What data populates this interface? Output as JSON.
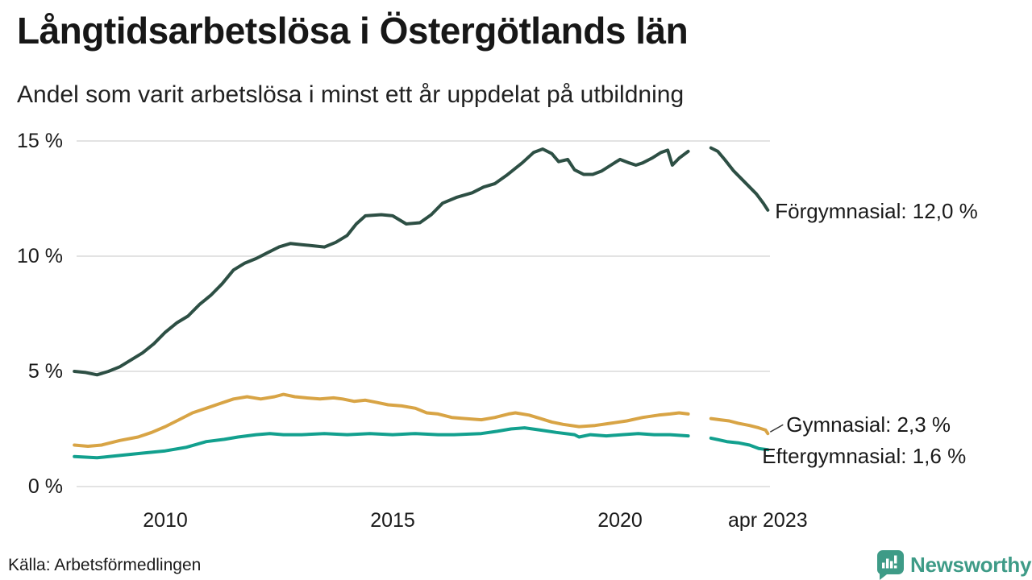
{
  "header": {
    "title": "Långtidsarbetslösa i Östergötlands län",
    "subtitle": "Andel som varit arbetslösa i minst ett år uppdelat på utbildning"
  },
  "footer": {
    "source": "Källa: Arbetsförmedlingen",
    "brand": "Newsworthy"
  },
  "colors": {
    "text": "#1a1a1a",
    "grid": "#e3e3e3",
    "connector": "#333333",
    "brand": "#3e9b87",
    "forgymnasial": "#2d4f44",
    "gymnasial": "#d8a445",
    "eftergymnasial": "#12a08e"
  },
  "chart_data": {
    "type": "line",
    "title": "Långtidsarbetslösa i Östergötlands län",
    "subtitle": "Andel som varit arbetslösa i minst ett år uppdelat på utbildning",
    "xlabel": "",
    "ylabel": "",
    "x_unit": "decimal_year",
    "xlim": [
      2008,
      2023.45
    ],
    "ylim": [
      0,
      15
    ],
    "grid": "horizontal-only",
    "legend": "line-end-labels",
    "note": "gap in all series during second half of 2021",
    "yticks": [
      {
        "value": 0,
        "label": "0 %"
      },
      {
        "value": 5,
        "label": "5 %"
      },
      {
        "value": 10,
        "label": "10 %"
      },
      {
        "value": 15,
        "label": "15 %"
      }
    ],
    "xticks": [
      {
        "value": 2010,
        "label": "2010"
      },
      {
        "value": 2015,
        "label": "2015"
      },
      {
        "value": 2020,
        "label": "2020"
      },
      {
        "value": 2023.25,
        "label": "apr 2023"
      }
    ],
    "series": [
      {
        "name": "Förgymnasial",
        "end_label": "Förgymnasial: 12,0 %",
        "last_value": "12,0 %",
        "color_key": "forgymnasial",
        "connector": false,
        "x": [
          2008.0,
          2008.25,
          2008.5,
          2008.75,
          2009.0,
          2009.25,
          2009.5,
          2009.75,
          2010.0,
          2010.25,
          2010.5,
          2010.75,
          2011.0,
          2011.25,
          2011.5,
          2011.75,
          2012.0,
          2012.25,
          2012.5,
          2012.75,
          2013.0,
          2013.25,
          2013.5,
          2013.75,
          2014.0,
          2014.2,
          2014.4,
          2014.75,
          2015.0,
          2015.3,
          2015.6,
          2015.85,
          2016.1,
          2016.4,
          2016.75,
          2017.0,
          2017.25,
          2017.5,
          2017.85,
          2018.1,
          2018.3,
          2018.5,
          2018.65,
          2018.85,
          2019.0,
          2019.2,
          2019.4,
          2019.6,
          2019.8,
          2020.0,
          2020.2,
          2020.35,
          2020.5,
          2020.7,
          2020.9,
          2021.05,
          2021.15,
          2021.3,
          2021.5,
          2021.75,
          2022.0,
          2022.15,
          2022.3,
          2022.5,
          2022.65,
          2022.8,
          2023.0,
          2023.15,
          2023.25
        ],
        "values": [
          5.0,
          4.95,
          4.85,
          5.0,
          5.2,
          5.5,
          5.8,
          6.2,
          6.7,
          7.1,
          7.4,
          7.9,
          8.3,
          8.8,
          9.4,
          9.7,
          9.9,
          10.15,
          10.4,
          10.55,
          10.5,
          10.45,
          10.4,
          10.6,
          10.9,
          11.4,
          11.75,
          11.8,
          11.75,
          11.4,
          11.45,
          11.8,
          12.3,
          12.55,
          12.75,
          13.0,
          13.15,
          13.5,
          14.05,
          14.5,
          14.65,
          14.45,
          14.1,
          14.2,
          13.75,
          13.55,
          13.55,
          13.7,
          13.95,
          14.2,
          14.05,
          13.95,
          14.05,
          14.25,
          14.5,
          14.6,
          13.95,
          14.25,
          14.55,
          null,
          14.7,
          14.55,
          14.2,
          13.7,
          13.4,
          13.1,
          12.7,
          12.3,
          12.0
        ]
      },
      {
        "name": "Gymnasial",
        "end_label": "Gymnasial:  2,3 %",
        "last_value": "2,3 %",
        "color_key": "gymnasial",
        "connector": true,
        "x": [
          2008.0,
          2008.3,
          2008.6,
          2009.0,
          2009.4,
          2009.7,
          2010.0,
          2010.3,
          2010.6,
          2010.9,
          2011.2,
          2011.5,
          2011.8,
          2012.1,
          2012.4,
          2012.6,
          2012.85,
          2013.1,
          2013.4,
          2013.7,
          2013.9,
          2014.15,
          2014.4,
          2014.65,
          2014.9,
          2015.2,
          2015.5,
          2015.75,
          2016.0,
          2016.3,
          2016.6,
          2016.95,
          2017.25,
          2017.55,
          2017.7,
          2018.0,
          2018.25,
          2018.5,
          2018.75,
          2019.1,
          2019.45,
          2019.8,
          2020.15,
          2020.5,
          2020.85,
          2021.1,
          2021.3,
          2021.5,
          2021.75,
          2022.0,
          2022.2,
          2022.4,
          2022.6,
          2022.85,
          2023.05,
          2023.2,
          2023.25
        ],
        "values": [
          1.8,
          1.75,
          1.8,
          2.0,
          2.15,
          2.35,
          2.6,
          2.9,
          3.2,
          3.4,
          3.6,
          3.8,
          3.9,
          3.8,
          3.9,
          4.0,
          3.9,
          3.85,
          3.8,
          3.85,
          3.8,
          3.7,
          3.75,
          3.65,
          3.55,
          3.5,
          3.4,
          3.2,
          3.15,
          3.0,
          2.95,
          2.9,
          3.0,
          3.15,
          3.2,
          3.1,
          2.95,
          2.8,
          2.7,
          2.6,
          2.65,
          2.75,
          2.85,
          3.0,
          3.1,
          3.15,
          3.2,
          3.15,
          null,
          2.95,
          2.9,
          2.85,
          2.75,
          2.65,
          2.55,
          2.45,
          2.3
        ]
      },
      {
        "name": "Eftergymnasial",
        "end_label": "Eftergymnasial:  1,6 %",
        "last_value": "1,6 %",
        "color_key": "eftergymnasial",
        "connector": false,
        "x": [
          2008.0,
          2008.5,
          2009.0,
          2009.5,
          2010.0,
          2010.45,
          2010.9,
          2011.3,
          2011.6,
          2012.0,
          2012.3,
          2012.6,
          2013.0,
          2013.5,
          2014.0,
          2014.5,
          2015.0,
          2015.5,
          2016.0,
          2016.35,
          2016.95,
          2017.3,
          2017.6,
          2017.9,
          2018.25,
          2018.6,
          2019.0,
          2019.1,
          2019.35,
          2019.7,
          2020.05,
          2020.4,
          2020.75,
          2021.1,
          2021.5,
          2021.75,
          2022.0,
          2022.35,
          2022.6,
          2022.85,
          2023.05,
          2023.25
        ],
        "values": [
          1.3,
          1.25,
          1.35,
          1.45,
          1.55,
          1.7,
          1.95,
          2.05,
          2.15,
          2.25,
          2.3,
          2.25,
          2.25,
          2.3,
          2.25,
          2.3,
          2.25,
          2.3,
          2.25,
          2.25,
          2.3,
          2.4,
          2.5,
          2.55,
          2.45,
          2.35,
          2.25,
          2.15,
          2.25,
          2.2,
          2.25,
          2.3,
          2.25,
          2.25,
          2.2,
          null,
          2.1,
          1.95,
          1.9,
          1.8,
          1.65,
          1.6
        ]
      }
    ]
  }
}
